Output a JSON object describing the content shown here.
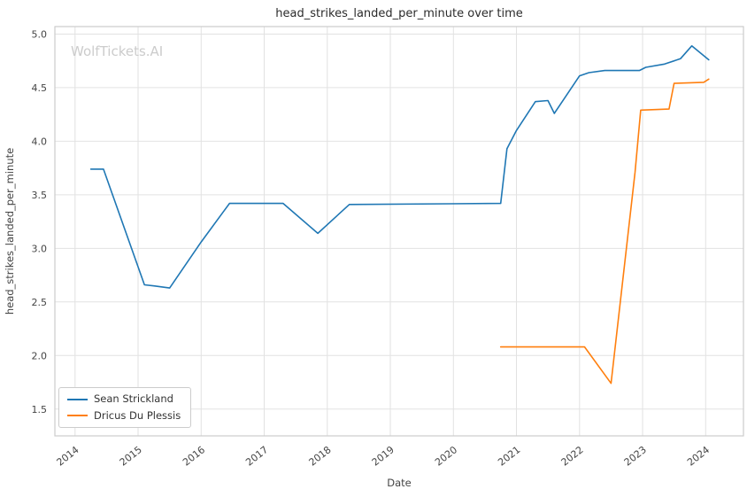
{
  "watermark": "WolfTickets.AI",
  "chart_data": {
    "type": "line",
    "title": "head_strikes_landed_per_minute over time",
    "xlabel": "Date",
    "ylabel": "head_strikes_landed_per_minute",
    "xlim": [
      2013.68,
      2024.6
    ],
    "ylim": [
      1.25,
      5.07
    ],
    "xticks": [
      2014,
      2015,
      2016,
      2017,
      2018,
      2019,
      2020,
      2021,
      2022,
      2023,
      2024
    ],
    "xtick_labels": [
      "2014",
      "2015",
      "2016",
      "2017",
      "2018",
      "2019",
      "2020",
      "2021",
      "2022",
      "2023",
      "2024"
    ],
    "yticks": [
      1.5,
      2.0,
      2.5,
      3.0,
      3.5,
      4.0,
      4.5,
      5.0
    ],
    "ytick_labels": [
      "1.5",
      "2.0",
      "2.5",
      "3.0",
      "3.5",
      "4.0",
      "4.5",
      "5.0"
    ],
    "grid": true,
    "grid_color": "#e2e2e2",
    "border_color": "#cccccc",
    "tick_color": "#444444",
    "title_color": "#2b2b2b",
    "watermark_color": "#cccccc",
    "legend_position": "lower left",
    "series": [
      {
        "name": "Sean Strickland",
        "color": "#1f77b4",
        "points": [
          [
            2014.25,
            3.74
          ],
          [
            2014.45,
            3.74
          ],
          [
            2015.1,
            2.66
          ],
          [
            2015.25,
            2.65
          ],
          [
            2015.5,
            2.63
          ],
          [
            2016.0,
            3.06
          ],
          [
            2016.45,
            3.42
          ],
          [
            2017.3,
            3.42
          ],
          [
            2017.85,
            3.14
          ],
          [
            2018.35,
            3.41
          ],
          [
            2020.75,
            3.42
          ],
          [
            2020.85,
            3.93
          ],
          [
            2021.0,
            4.1
          ],
          [
            2021.3,
            4.37
          ],
          [
            2021.5,
            4.38
          ],
          [
            2021.6,
            4.26
          ],
          [
            2022.0,
            4.61
          ],
          [
            2022.15,
            4.64
          ],
          [
            2022.4,
            4.66
          ],
          [
            2022.95,
            4.66
          ],
          [
            2023.05,
            4.69
          ],
          [
            2023.35,
            4.72
          ],
          [
            2023.6,
            4.77
          ],
          [
            2023.78,
            4.89
          ],
          [
            2024.05,
            4.76
          ]
        ]
      },
      {
        "name": "Dricus Du Plessis",
        "color": "#ff7f0e",
        "points": [
          [
            2020.75,
            2.08
          ],
          [
            2022.08,
            2.08
          ],
          [
            2022.5,
            1.74
          ],
          [
            2022.88,
            3.71
          ],
          [
            2022.97,
            4.29
          ],
          [
            2023.42,
            4.3
          ],
          [
            2023.5,
            4.54
          ],
          [
            2023.97,
            4.55
          ],
          [
            2024.05,
            4.58
          ]
        ]
      }
    ]
  }
}
